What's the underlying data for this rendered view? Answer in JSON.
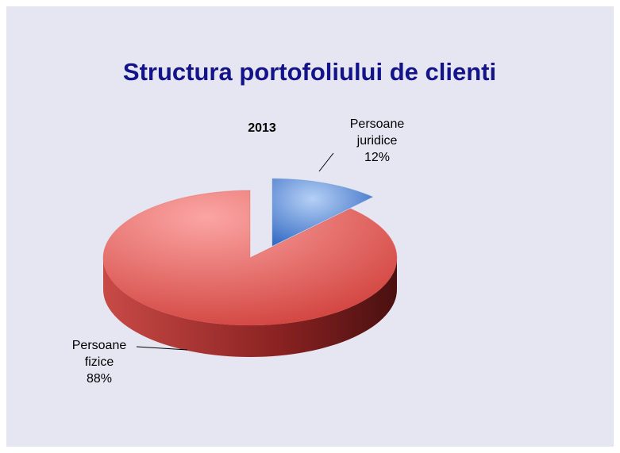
{
  "chart_data": {
    "type": "pie",
    "title": "Structura portofoliului de clienti",
    "subtitle": "2013",
    "categories": [
      "Persoane juridice",
      "Persoane fizice"
    ],
    "values": [
      12,
      88
    ],
    "value_labels": [
      "12%",
      "88%"
    ],
    "colors": [
      "#5b8fd8",
      "#e0524d"
    ]
  }
}
